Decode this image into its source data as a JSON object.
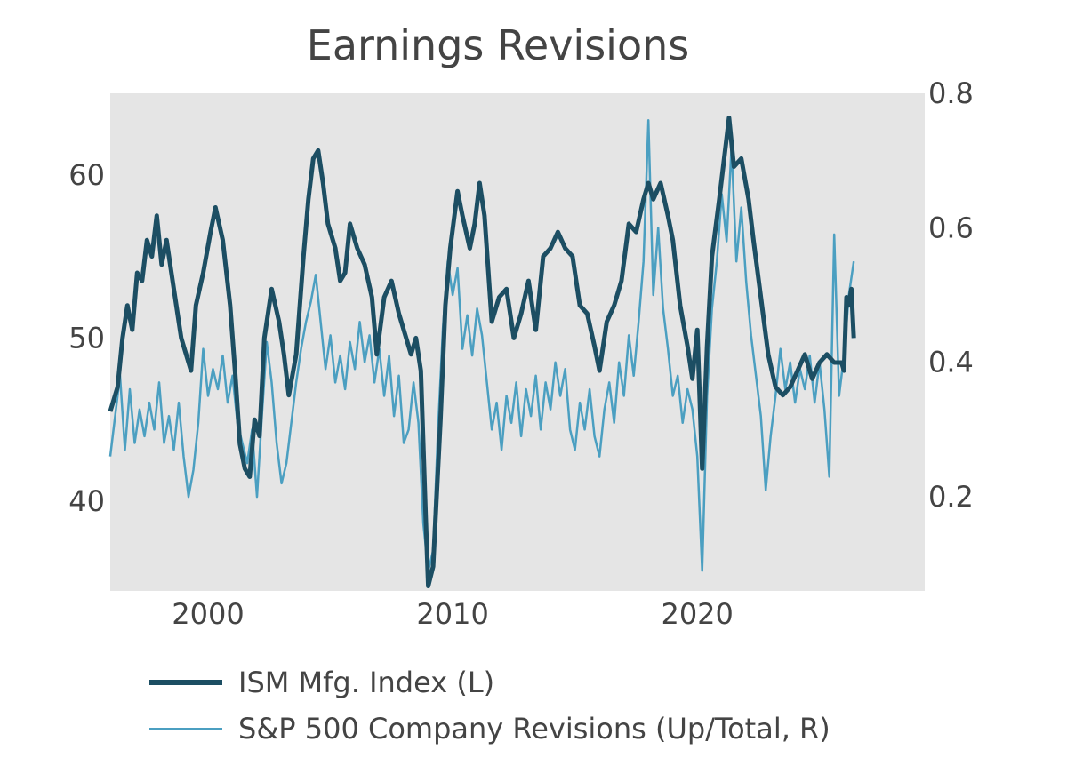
{
  "chart_data": {
    "type": "line",
    "title": "Earnings Revisions",
    "xlabel": "",
    "ylabel": "",
    "x_range": [
      1996,
      2029.3
    ],
    "y_left": {
      "range": [
        34.5,
        65
      ],
      "ticks": [
        40,
        50,
        60
      ]
    },
    "y_right": {
      "range": [
        0.06,
        0.8
      ],
      "ticks": [
        0.2,
        0.4,
        0.6,
        0.8
      ]
    },
    "x_ticks": [
      2000,
      2010,
      2020
    ],
    "plot_background": "#e5e5e5",
    "legend_position": "bottom-left",
    "series": [
      {
        "name": "ISM Mfg. Index (L)",
        "axis": "left",
        "color": "#1c4e63",
        "points": [
          [
            1996.0,
            45.5
          ],
          [
            1996.3,
            47
          ],
          [
            1996.5,
            50
          ],
          [
            1996.7,
            52
          ],
          [
            1996.9,
            50.5
          ],
          [
            1997.1,
            54
          ],
          [
            1997.3,
            53.5
          ],
          [
            1997.5,
            56
          ],
          [
            1997.7,
            55
          ],
          [
            1997.9,
            57.5
          ],
          [
            1998.1,
            54.5
          ],
          [
            1998.3,
            56
          ],
          [
            1998.6,
            53
          ],
          [
            1998.9,
            50
          ],
          [
            1999.1,
            49
          ],
          [
            1999.3,
            48
          ],
          [
            1999.5,
            52
          ],
          [
            1999.8,
            54
          ],
          [
            2000.1,
            56.5
          ],
          [
            2000.3,
            58
          ],
          [
            2000.6,
            56
          ],
          [
            2000.9,
            52
          ],
          [
            2001.1,
            48
          ],
          [
            2001.3,
            43.5
          ],
          [
            2001.5,
            42
          ],
          [
            2001.7,
            41.5
          ],
          [
            2001.9,
            45
          ],
          [
            2002.1,
            44
          ],
          [
            2002.3,
            50
          ],
          [
            2002.6,
            53
          ],
          [
            2002.9,
            51
          ],
          [
            2003.1,
            49
          ],
          [
            2003.3,
            46.5
          ],
          [
            2003.6,
            49
          ],
          [
            2003.9,
            55
          ],
          [
            2004.1,
            58.5
          ],
          [
            2004.3,
            61
          ],
          [
            2004.5,
            61.5
          ],
          [
            2004.7,
            59.5
          ],
          [
            2004.9,
            57
          ],
          [
            2005.2,
            55.5
          ],
          [
            2005.4,
            53.5
          ],
          [
            2005.6,
            54
          ],
          [
            2005.8,
            57
          ],
          [
            2006.1,
            55.5
          ],
          [
            2006.4,
            54.5
          ],
          [
            2006.7,
            52.5
          ],
          [
            2006.9,
            49
          ],
          [
            2007.2,
            52.5
          ],
          [
            2007.5,
            53.5
          ],
          [
            2007.8,
            51.5
          ],
          [
            2008.1,
            50
          ],
          [
            2008.3,
            49
          ],
          [
            2008.5,
            50
          ],
          [
            2008.7,
            48
          ],
          [
            2008.9,
            39
          ],
          [
            2009.0,
            34.8
          ],
          [
            2009.2,
            36
          ],
          [
            2009.5,
            45
          ],
          [
            2009.7,
            52
          ],
          [
            2009.9,
            55.5
          ],
          [
            2010.2,
            59
          ],
          [
            2010.4,
            57.5
          ],
          [
            2010.7,
            55.5
          ],
          [
            2010.9,
            57
          ],
          [
            2011.1,
            59.5
          ],
          [
            2011.3,
            57.5
          ],
          [
            2011.6,
            51
          ],
          [
            2011.9,
            52.5
          ],
          [
            2012.2,
            53
          ],
          [
            2012.5,
            50
          ],
          [
            2012.8,
            51.5
          ],
          [
            2013.1,
            53.5
          ],
          [
            2013.4,
            50.5
          ],
          [
            2013.7,
            55
          ],
          [
            2014.0,
            55.5
          ],
          [
            2014.3,
            56.5
          ],
          [
            2014.6,
            55.5
          ],
          [
            2014.9,
            55
          ],
          [
            2015.2,
            52
          ],
          [
            2015.5,
            51.5
          ],
          [
            2015.8,
            49.5
          ],
          [
            2016.0,
            48
          ],
          [
            2016.3,
            51
          ],
          [
            2016.6,
            52
          ],
          [
            2016.9,
            53.5
          ],
          [
            2017.2,
            57
          ],
          [
            2017.5,
            56.5
          ],
          [
            2017.8,
            58.5
          ],
          [
            2018.0,
            59.5
          ],
          [
            2018.2,
            58.5
          ],
          [
            2018.5,
            59.5
          ],
          [
            2018.8,
            57.5
          ],
          [
            2019.0,
            56
          ],
          [
            2019.3,
            52
          ],
          [
            2019.6,
            49.5
          ],
          [
            2019.8,
            47.5
          ],
          [
            2020.0,
            50.5
          ],
          [
            2020.2,
            42
          ],
          [
            2020.4,
            49.5
          ],
          [
            2020.6,
            55
          ],
          [
            2020.9,
            58.5
          ],
          [
            2021.1,
            61
          ],
          [
            2021.3,
            63.5
          ],
          [
            2021.5,
            60.5
          ],
          [
            2021.8,
            61
          ],
          [
            2022.1,
            58.5
          ],
          [
            2022.3,
            56
          ],
          [
            2022.6,
            52.5
          ],
          [
            2022.9,
            49
          ],
          [
            2023.2,
            47
          ],
          [
            2023.5,
            46.5
          ],
          [
            2023.8,
            47
          ],
          [
            2024.1,
            48
          ],
          [
            2024.4,
            49
          ],
          [
            2024.7,
            47.5
          ],
          [
            2025.0,
            48.5
          ],
          [
            2025.3,
            49
          ],
          [
            2025.6,
            48.5
          ],
          [
            2025.9,
            48.5
          ],
          [
            2026.0,
            48
          ],
          [
            2026.1,
            52.5
          ],
          [
            2026.2,
            52
          ],
          [
            2026.3,
            53
          ],
          [
            2026.4,
            50
          ]
        ]
      },
      {
        "name": "S&P 500 Company Revisions (Up/Total, R)",
        "axis": "right",
        "color": "#4b9fc1",
        "points": [
          [
            1996.0,
            0.26
          ],
          [
            1996.2,
            0.32
          ],
          [
            1996.4,
            0.38
          ],
          [
            1996.6,
            0.27
          ],
          [
            1996.8,
            0.36
          ],
          [
            1997.0,
            0.28
          ],
          [
            1997.2,
            0.33
          ],
          [
            1997.4,
            0.29
          ],
          [
            1997.6,
            0.34
          ],
          [
            1997.8,
            0.3
          ],
          [
            1998.0,
            0.37
          ],
          [
            1998.2,
            0.28
          ],
          [
            1998.4,
            0.32
          ],
          [
            1998.6,
            0.27
          ],
          [
            1998.8,
            0.34
          ],
          [
            1999.0,
            0.26
          ],
          [
            1999.2,
            0.2
          ],
          [
            1999.4,
            0.24
          ],
          [
            1999.6,
            0.31
          ],
          [
            1999.8,
            0.42
          ],
          [
            2000.0,
            0.35
          ],
          [
            2000.2,
            0.39
          ],
          [
            2000.4,
            0.36
          ],
          [
            2000.6,
            0.41
          ],
          [
            2000.8,
            0.34
          ],
          [
            2001.0,
            0.38
          ],
          [
            2001.2,
            0.31
          ],
          [
            2001.4,
            0.28
          ],
          [
            2001.6,
            0.25
          ],
          [
            2001.8,
            0.3
          ],
          [
            2002.0,
            0.2
          ],
          [
            2002.2,
            0.32
          ],
          [
            2002.4,
            0.43
          ],
          [
            2002.6,
            0.37
          ],
          [
            2002.8,
            0.28
          ],
          [
            2003.0,
            0.22
          ],
          [
            2003.2,
            0.25
          ],
          [
            2003.4,
            0.31
          ],
          [
            2003.6,
            0.37
          ],
          [
            2003.8,
            0.42
          ],
          [
            2004.0,
            0.46
          ],
          [
            2004.2,
            0.49
          ],
          [
            2004.4,
            0.53
          ],
          [
            2004.6,
            0.46
          ],
          [
            2004.8,
            0.39
          ],
          [
            2005.0,
            0.44
          ],
          [
            2005.2,
            0.37
          ],
          [
            2005.4,
            0.41
          ],
          [
            2005.6,
            0.36
          ],
          [
            2005.8,
            0.43
          ],
          [
            2006.0,
            0.39
          ],
          [
            2006.2,
            0.46
          ],
          [
            2006.4,
            0.4
          ],
          [
            2006.6,
            0.44
          ],
          [
            2006.8,
            0.37
          ],
          [
            2007.0,
            0.42
          ],
          [
            2007.2,
            0.35
          ],
          [
            2007.4,
            0.41
          ],
          [
            2007.6,
            0.32
          ],
          [
            2007.8,
            0.38
          ],
          [
            2008.0,
            0.28
          ],
          [
            2008.2,
            0.3
          ],
          [
            2008.4,
            0.37
          ],
          [
            2008.6,
            0.31
          ],
          [
            2008.8,
            0.16
          ],
          [
            2009.0,
            0.09
          ],
          [
            2009.2,
            0.12
          ],
          [
            2009.4,
            0.3
          ],
          [
            2009.6,
            0.45
          ],
          [
            2009.8,
            0.55
          ],
          [
            2010.0,
            0.5
          ],
          [
            2010.2,
            0.54
          ],
          [
            2010.4,
            0.42
          ],
          [
            2010.6,
            0.47
          ],
          [
            2010.8,
            0.41
          ],
          [
            2011.0,
            0.48
          ],
          [
            2011.2,
            0.44
          ],
          [
            2011.4,
            0.37
          ],
          [
            2011.6,
            0.3
          ],
          [
            2011.8,
            0.34
          ],
          [
            2012.0,
            0.27
          ],
          [
            2012.2,
            0.35
          ],
          [
            2012.4,
            0.31
          ],
          [
            2012.6,
            0.37
          ],
          [
            2012.8,
            0.29
          ],
          [
            2013.0,
            0.36
          ],
          [
            2013.2,
            0.32
          ],
          [
            2013.4,
            0.38
          ],
          [
            2013.6,
            0.3
          ],
          [
            2013.8,
            0.37
          ],
          [
            2014.0,
            0.33
          ],
          [
            2014.2,
            0.4
          ],
          [
            2014.4,
            0.35
          ],
          [
            2014.6,
            0.39
          ],
          [
            2014.8,
            0.3
          ],
          [
            2015.0,
            0.27
          ],
          [
            2015.2,
            0.34
          ],
          [
            2015.4,
            0.3
          ],
          [
            2015.6,
            0.36
          ],
          [
            2015.8,
            0.29
          ],
          [
            2016.0,
            0.26
          ],
          [
            2016.2,
            0.33
          ],
          [
            2016.4,
            0.37
          ],
          [
            2016.6,
            0.31
          ],
          [
            2016.8,
            0.4
          ],
          [
            2017.0,
            0.35
          ],
          [
            2017.2,
            0.44
          ],
          [
            2017.4,
            0.38
          ],
          [
            2017.6,
            0.46
          ],
          [
            2017.8,
            0.55
          ],
          [
            2018.0,
            0.76
          ],
          [
            2018.2,
            0.5
          ],
          [
            2018.4,
            0.6
          ],
          [
            2018.6,
            0.48
          ],
          [
            2018.8,
            0.42
          ],
          [
            2019.0,
            0.35
          ],
          [
            2019.2,
            0.38
          ],
          [
            2019.4,
            0.31
          ],
          [
            2019.6,
            0.36
          ],
          [
            2019.8,
            0.33
          ],
          [
            2020.0,
            0.26
          ],
          [
            2020.2,
            0.09
          ],
          [
            2020.4,
            0.35
          ],
          [
            2020.6,
            0.48
          ],
          [
            2020.8,
            0.55
          ],
          [
            2021.0,
            0.65
          ],
          [
            2021.2,
            0.58
          ],
          [
            2021.4,
            0.72
          ],
          [
            2021.6,
            0.55
          ],
          [
            2021.8,
            0.63
          ],
          [
            2022.0,
            0.52
          ],
          [
            2022.2,
            0.44
          ],
          [
            2022.4,
            0.38
          ],
          [
            2022.6,
            0.32
          ],
          [
            2022.8,
            0.21
          ],
          [
            2023.0,
            0.29
          ],
          [
            2023.2,
            0.35
          ],
          [
            2023.4,
            0.42
          ],
          [
            2023.6,
            0.36
          ],
          [
            2023.8,
            0.4
          ],
          [
            2024.0,
            0.34
          ],
          [
            2024.2,
            0.39
          ],
          [
            2024.4,
            0.36
          ],
          [
            2024.6,
            0.41
          ],
          [
            2024.8,
            0.34
          ],
          [
            2025.0,
            0.4
          ],
          [
            2025.2,
            0.33
          ],
          [
            2025.4,
            0.23
          ],
          [
            2025.6,
            0.59
          ],
          [
            2025.8,
            0.35
          ],
          [
            2026.0,
            0.41
          ],
          [
            2026.2,
            0.5
          ],
          [
            2026.4,
            0.55
          ]
        ]
      }
    ]
  }
}
